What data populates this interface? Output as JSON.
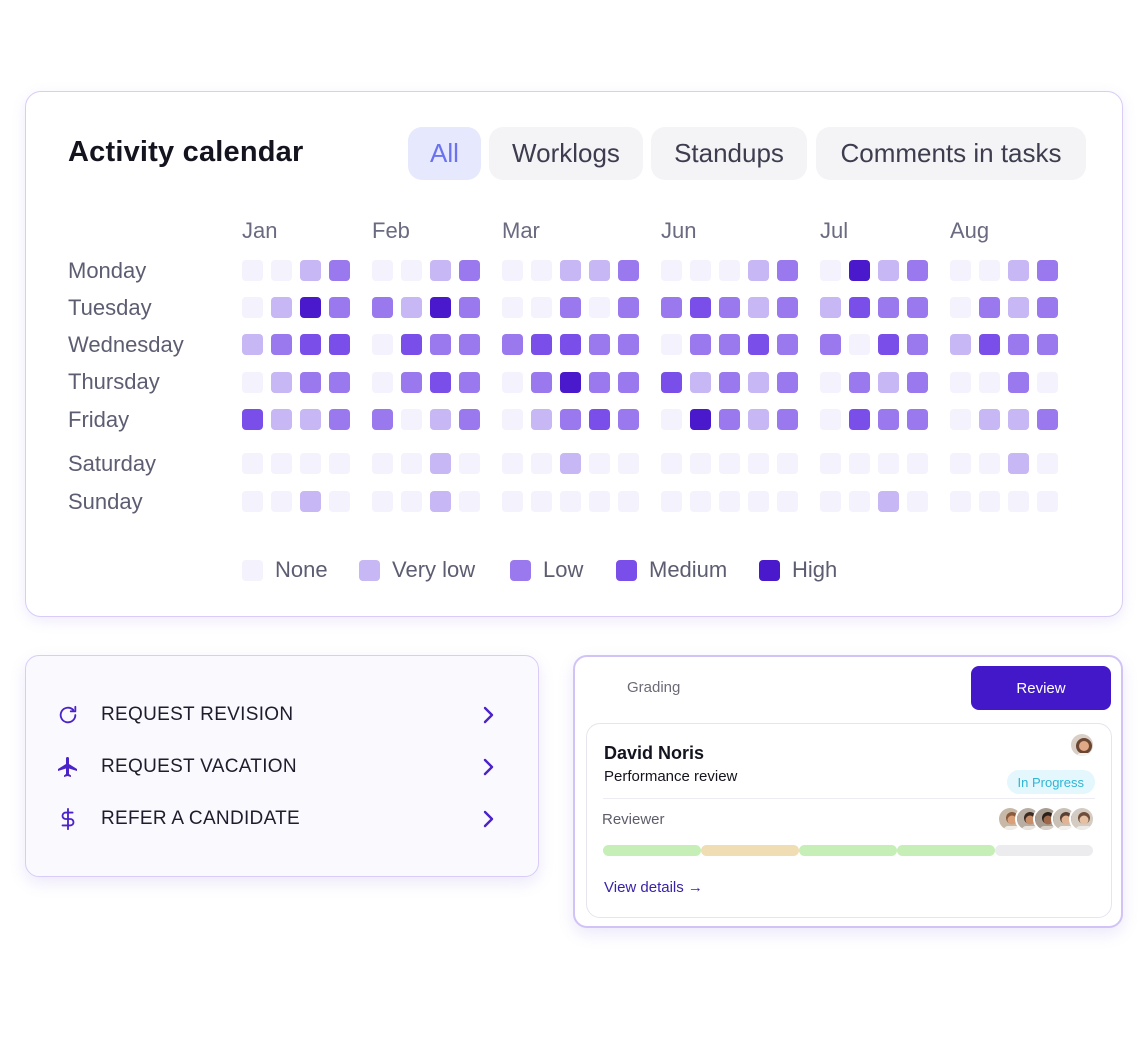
{
  "calendar": {
    "title": "Activity calendar",
    "tabs": [
      "All",
      "Worklogs",
      "Standups",
      "Comments in tasks"
    ],
    "active_tab": "All",
    "months": [
      "Jan",
      "Feb",
      "Mar",
      "Jun",
      "Jul",
      "Aug"
    ],
    "days": [
      "Monday",
      "Tuesday",
      "Wednesday",
      "Thursday",
      "Friday",
      "Saturday",
      "Sunday"
    ],
    "levels": [
      [
        0,
        0,
        1,
        2,
        0,
        0,
        1,
        2,
        0,
        0,
        1,
        1,
        2,
        0,
        0,
        0,
        1,
        2,
        0,
        4,
        1,
        2,
        0,
        0,
        1,
        2
      ],
      [
        0,
        1,
        4,
        2,
        2,
        1,
        4,
        2,
        0,
        0,
        2,
        0,
        2,
        2,
        3,
        2,
        1,
        2,
        1,
        3,
        2,
        2,
        0,
        2,
        1,
        2
      ],
      [
        1,
        2,
        3,
        3,
        0,
        3,
        2,
        2,
        2,
        3,
        3,
        2,
        2,
        0,
        2,
        2,
        3,
        2,
        2,
        0,
        3,
        2,
        1,
        3,
        2,
        2
      ],
      [
        0,
        1,
        2,
        2,
        0,
        2,
        3,
        2,
        0,
        2,
        4,
        2,
        2,
        3,
        1,
        2,
        1,
        2,
        0,
        2,
        1,
        2,
        0,
        0,
        2,
        0
      ],
      [
        3,
        1,
        1,
        2,
        2,
        0,
        1,
        2,
        0,
        1,
        2,
        3,
        2,
        0,
        4,
        2,
        1,
        2,
        0,
        3,
        2,
        2,
        0,
        1,
        1,
        2
      ],
      [
        0,
        0,
        0,
        0,
        0,
        0,
        1,
        0,
        0,
        0,
        1,
        0,
        0,
        0,
        0,
        0,
        0,
        0,
        0,
        0,
        0,
        0,
        0,
        0,
        1,
        0
      ],
      [
        0,
        0,
        1,
        0,
        0,
        0,
        1,
        0,
        0,
        0,
        0,
        0,
        0,
        0,
        0,
        0,
        0,
        0,
        0,
        0,
        1,
        0,
        0,
        0,
        0,
        0
      ]
    ],
    "legend": [
      {
        "label": "None",
        "color": "#f4f2fc"
      },
      {
        "label": "Very low",
        "color": "#c7b7f4"
      },
      {
        "label": "Low",
        "color": "#9a78ee"
      },
      {
        "label": "Medium",
        "color": "#7a4ee9"
      },
      {
        "label": "High",
        "color": "#4a19cc"
      }
    ]
  },
  "requests": {
    "items": [
      {
        "label": "REQUEST REVISION",
        "icon": "refresh-icon"
      },
      {
        "label": "REQUEST VACATION",
        "icon": "airplane-icon"
      },
      {
        "label": "REFER A CANDIDATE",
        "icon": "dollar-icon"
      }
    ],
    "chevron_icon": "chevron-right-icon"
  },
  "review": {
    "tabs": {
      "grading": "Grading",
      "review": "Review"
    },
    "active_tab": "Review",
    "name": "David Noris",
    "subtitle": "Performance review",
    "status": "In Progress",
    "reviewer_label": "Reviewer",
    "reviewer_count": 5,
    "progress_colors": [
      "#c5efb6",
      "#f1ddb4",
      "#c5efb6",
      "#c5efb6",
      "#ececef"
    ],
    "link": "View details →"
  }
}
